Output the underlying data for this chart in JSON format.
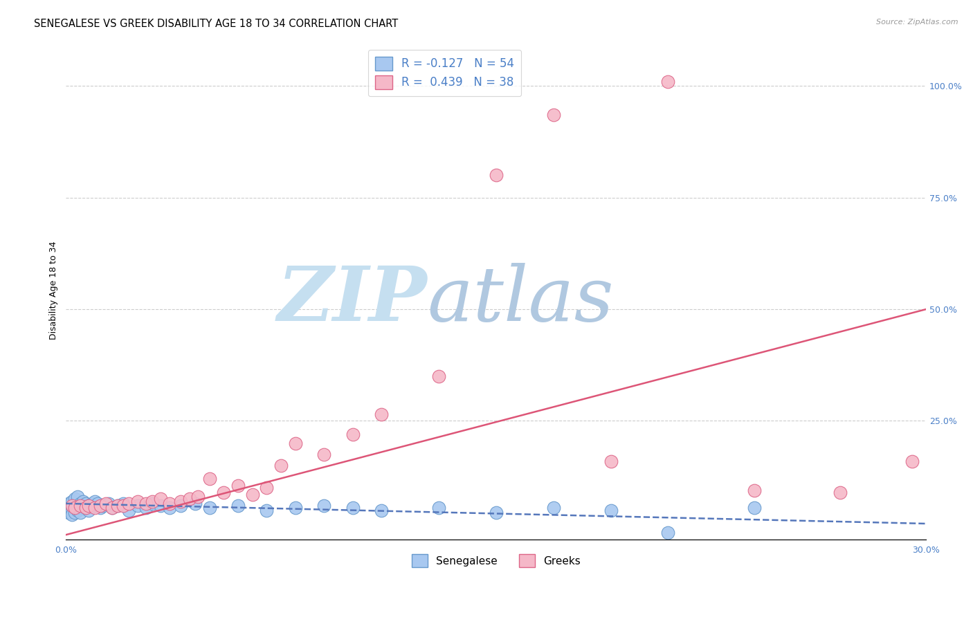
{
  "title": "SENEGALESE VS GREEK DISABILITY AGE 18 TO 34 CORRELATION CHART",
  "source": "Source: ZipAtlas.com",
  "ylabel": "Disability Age 18 to 34",
  "right_yticks": [
    0.0,
    0.25,
    0.5,
    0.75,
    1.0
  ],
  "right_yticklabels": [
    "",
    "25.0%",
    "50.0%",
    "75.0%",
    "100.0%"
  ],
  "xlim": [
    0.0,
    0.3
  ],
  "ylim": [
    -0.015,
    1.1
  ],
  "legend_r1": "R = -0.127",
  "legend_n1": "N = 54",
  "legend_r2": "R =  0.439",
  "legend_n2": "N = 38",
  "color_senegalese": "#a8c8f0",
  "color_greeks": "#f5b8c8",
  "color_senegalese_edge": "#6699cc",
  "color_greeks_edge": "#dd6688",
  "color_senegalese_line": "#5577bb",
  "color_greeks_line": "#dd5577",
  "watermark_zip_color": "#c8e0f0",
  "watermark_atlas_color": "#b8cce4",
  "title_fontsize": 10.5,
  "axis_label_fontsize": 9,
  "tick_fontsize": 9,
  "sen_x": [
    0.001,
    0.001,
    0.001,
    0.002,
    0.002,
    0.002,
    0.002,
    0.003,
    0.003,
    0.003,
    0.003,
    0.004,
    0.004,
    0.004,
    0.005,
    0.005,
    0.005,
    0.006,
    0.006,
    0.007,
    0.007,
    0.008,
    0.008,
    0.009,
    0.01,
    0.01,
    0.011,
    0.012,
    0.013,
    0.015,
    0.016,
    0.018,
    0.02,
    0.022,
    0.025,
    0.028,
    0.03,
    0.033,
    0.036,
    0.04,
    0.045,
    0.05,
    0.06,
    0.07,
    0.08,
    0.09,
    0.1,
    0.11,
    0.13,
    0.15,
    0.17,
    0.19,
    0.21,
    0.24
  ],
  "sen_y": [
    0.065,
    0.055,
    0.045,
    0.06,
    0.05,
    0.04,
    0.07,
    0.055,
    0.065,
    0.045,
    0.075,
    0.05,
    0.06,
    0.08,
    0.055,
    0.045,
    0.065,
    0.06,
    0.07,
    0.055,
    0.065,
    0.06,
    0.05,
    0.065,
    0.06,
    0.07,
    0.065,
    0.055,
    0.06,
    0.065,
    0.055,
    0.06,
    0.065,
    0.05,
    0.06,
    0.055,
    0.065,
    0.06,
    0.055,
    0.06,
    0.065,
    0.055,
    0.06,
    0.05,
    0.055,
    0.06,
    0.055,
    0.05,
    0.055,
    0.045,
    0.055,
    0.05,
    0.0,
    0.055
  ],
  "grk_x": [
    0.002,
    0.003,
    0.005,
    0.007,
    0.008,
    0.01,
    0.012,
    0.014,
    0.016,
    0.018,
    0.02,
    0.022,
    0.025,
    0.028,
    0.03,
    0.033,
    0.036,
    0.04,
    0.043,
    0.046,
    0.05,
    0.055,
    0.06,
    0.065,
    0.07,
    0.075,
    0.08,
    0.09,
    0.1,
    0.11,
    0.13,
    0.15,
    0.17,
    0.19,
    0.21,
    0.24,
    0.27,
    0.295
  ],
  "grk_y": [
    0.06,
    0.055,
    0.06,
    0.055,
    0.06,
    0.055,
    0.06,
    0.065,
    0.055,
    0.06,
    0.06,
    0.065,
    0.07,
    0.065,
    0.07,
    0.075,
    0.065,
    0.07,
    0.075,
    0.08,
    0.12,
    0.09,
    0.105,
    0.085,
    0.1,
    0.15,
    0.2,
    0.175,
    0.22,
    0.265,
    0.35,
    0.8,
    0.935,
    0.16,
    1.01,
    0.095,
    0.09,
    0.16
  ],
  "grk_line_x0": 0.0,
  "grk_line_y0": -0.005,
  "grk_line_x1": 0.3,
  "grk_line_y1": 0.5,
  "sen_line_x0": 0.0,
  "sen_line_y0": 0.065,
  "sen_line_x1": 0.3,
  "sen_line_y1": 0.02
}
